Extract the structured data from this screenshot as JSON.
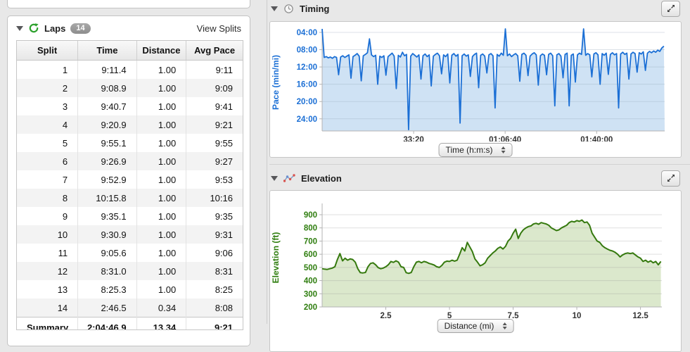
{
  "page": {
    "background": "#e8e8e8"
  },
  "left_panel": {
    "header": {
      "title": "Laps",
      "count": "14",
      "action_label": "View Splits"
    },
    "table": {
      "columns": [
        "Split",
        "Time",
        "Distance",
        "Avg Pace"
      ],
      "rows": [
        [
          "1",
          "9:11.4",
          "1.00",
          "9:11"
        ],
        [
          "2",
          "9:08.9",
          "1.00",
          "9:09"
        ],
        [
          "3",
          "9:40.7",
          "1.00",
          "9:41"
        ],
        [
          "4",
          "9:20.9",
          "1.00",
          "9:21"
        ],
        [
          "5",
          "9:55.1",
          "1.00",
          "9:55"
        ],
        [
          "6",
          "9:26.9",
          "1.00",
          "9:27"
        ],
        [
          "7",
          "9:52.9",
          "1.00",
          "9:53"
        ],
        [
          "8",
          "10:15.8",
          "1.00",
          "10:16"
        ],
        [
          "9",
          "9:35.1",
          "1.00",
          "9:35"
        ],
        [
          "10",
          "9:30.9",
          "1.00",
          "9:31"
        ],
        [
          "11",
          "9:05.6",
          "1.00",
          "9:06"
        ],
        [
          "12",
          "8:31.0",
          "1.00",
          "8:31"
        ],
        [
          "13",
          "8:25.3",
          "1.00",
          "8:25"
        ],
        [
          "14",
          "2:46.5",
          "0.34",
          "8:08"
        ]
      ],
      "summary": [
        "Summary",
        "2:04:46.9",
        "13.34",
        "9:21"
      ]
    }
  },
  "timing_section": {
    "title": "Timing",
    "x_axis_selector": "Time (h:m:s)"
  },
  "elevation_section": {
    "title": "Elevation",
    "x_axis_selector": "Distance (mi)"
  },
  "chart_data": [
    {
      "type": "area",
      "title": "Timing",
      "ylabel": "Pace (min/mi)",
      "xlabel": "Time (h:m:s)",
      "y_inverted": true,
      "y_ticks_labels": [
        "04:00",
        "08:00",
        "12:00",
        "16:00",
        "20:00",
        "24:00"
      ],
      "y_ticks_values": [
        4,
        8,
        12,
        16,
        20,
        24
      ],
      "ylim": [
        3.2,
        26.8
      ],
      "x_ticks_labels": [
        "33:20",
        "01:06:40",
        "01:40:00"
      ],
      "x_ticks_values": [
        2000,
        4000,
        6000
      ],
      "xlim": [
        0,
        7487
      ],
      "line_color": "#1b6fd5",
      "fill_color": "#cfe2f4",
      "axis_label_color": "#1b6fd5",
      "x_step_seconds": 45,
      "pace_min_per_mi": [
        3.2,
        9.8,
        9.6,
        9.9,
        9.7,
        10.0,
        9.6,
        9.8,
        13.8,
        9.7,
        9.4,
        9.8,
        9.5,
        9.2,
        14.6,
        9.6,
        9.3,
        8.9,
        9.5,
        15.2,
        9.4,
        9.1,
        8.7,
        5.5,
        9.2,
        9.6,
        9.3,
        16.0,
        9.5,
        9.8,
        9.4,
        13.9,
        9.6,
        9.2,
        8.8,
        9.5,
        17.0,
        9.3,
        9.7,
        8.6,
        9.4,
        9.1,
        26.5,
        9.5,
        8.9,
        9.3,
        9.7,
        9.2,
        14.8,
        9.4,
        9.0,
        9.6,
        9.2,
        16.4,
        9.5,
        9.1,
        8.8,
        9.4,
        13.6,
        9.2,
        9.6,
        9.0,
        15.7,
        9.3,
        8.9,
        9.5,
        9.1,
        25.0,
        9.4,
        9.0,
        9.5,
        9.2,
        14.2,
        9.6,
        9.1,
        8.8,
        16.8,
        9.3,
        9.0,
        9.5,
        13.4,
        9.2,
        8.9,
        9.4,
        21.5,
        9.1,
        9.5,
        8.8,
        9.3,
        3.0,
        9.4,
        9.0,
        9.6,
        9.2,
        8.9,
        9.4,
        15.3,
        9.1,
        8.8,
        9.3,
        14.0,
        9.5,
        9.0,
        8.7,
        9.2,
        16.2,
        9.4,
        9.0,
        9.3,
        13.8,
        9.1,
        8.8,
        9.4,
        21.0,
        9.2,
        8.9,
        9.5,
        14.5,
        9.1,
        8.8,
        21.0,
        9.3,
        9.0,
        15.5,
        9.2,
        8.8,
        9.1,
        3.0,
        9.3,
        8.9,
        9.2,
        14.3,
        9.0,
        8.7,
        9.2,
        16.0,
        8.9,
        9.3,
        8.8,
        13.7,
        9.1,
        8.7,
        9.2,
        8.9,
        21.5,
        9.0,
        8.6,
        9.1,
        8.8,
        14.8,
        9.0,
        8.6,
        8.9,
        13.2,
        8.7,
        9.0,
        8.5,
        12.8,
        8.8,
        8.4,
        8.7,
        8.3,
        8.6,
        8.1,
        8.4,
        7.6,
        7.2
      ]
    },
    {
      "type": "area",
      "title": "Elevation",
      "ylabel": "Elevation (ft)",
      "xlabel": "Distance (mi)",
      "y_ticks_values": [
        900,
        800,
        700,
        600,
        500,
        400,
        300,
        200
      ],
      "ylim": [
        200,
        950
      ],
      "x_ticks_labels": [
        "2.5",
        "5",
        "7.5",
        "10",
        "12.5"
      ],
      "x_ticks_values": [
        2.5,
        5,
        7.5,
        10,
        12.5
      ],
      "xlim": [
        0,
        13.34
      ],
      "line_color": "#35790e",
      "fill_color": "#dbe8cc",
      "axis_label_color": "#2e7d0e",
      "x_step_mi": 0.1,
      "elevation_ft": [
        490,
        487,
        485,
        490,
        495,
        505,
        560,
        605,
        550,
        570,
        555,
        565,
        560,
        540,
        490,
        460,
        458,
        462,
        505,
        530,
        535,
        520,
        498,
        490,
        495,
        505,
        520,
        545,
        538,
        550,
        540,
        505,
        500,
        460,
        455,
        462,
        505,
        540,
        545,
        535,
        545,
        540,
        530,
        525,
        518,
        505,
        500,
        515,
        540,
        548,
        545,
        555,
        548,
        555,
        600,
        650,
        625,
        690,
        655,
        620,
        565,
        540,
        512,
        520,
        535,
        570,
        590,
        610,
        625,
        645,
        655,
        640,
        660,
        700,
        720,
        760,
        790,
        720,
        760,
        785,
        800,
        810,
        815,
        830,
        835,
        828,
        840,
        835,
        830,
        820,
        800,
        790,
        780,
        785,
        800,
        810,
        820,
        840,
        850,
        845,
        855,
        850,
        860,
        840,
        845,
        820,
        760,
        730,
        700,
        690,
        665,
        650,
        640,
        630,
        625,
        615,
        600,
        580,
        595,
        605,
        610,
        605,
        610,
        595,
        580,
        570,
        545,
        555,
        540,
        550,
        535,
        545,
        520,
        545
      ]
    }
  ]
}
